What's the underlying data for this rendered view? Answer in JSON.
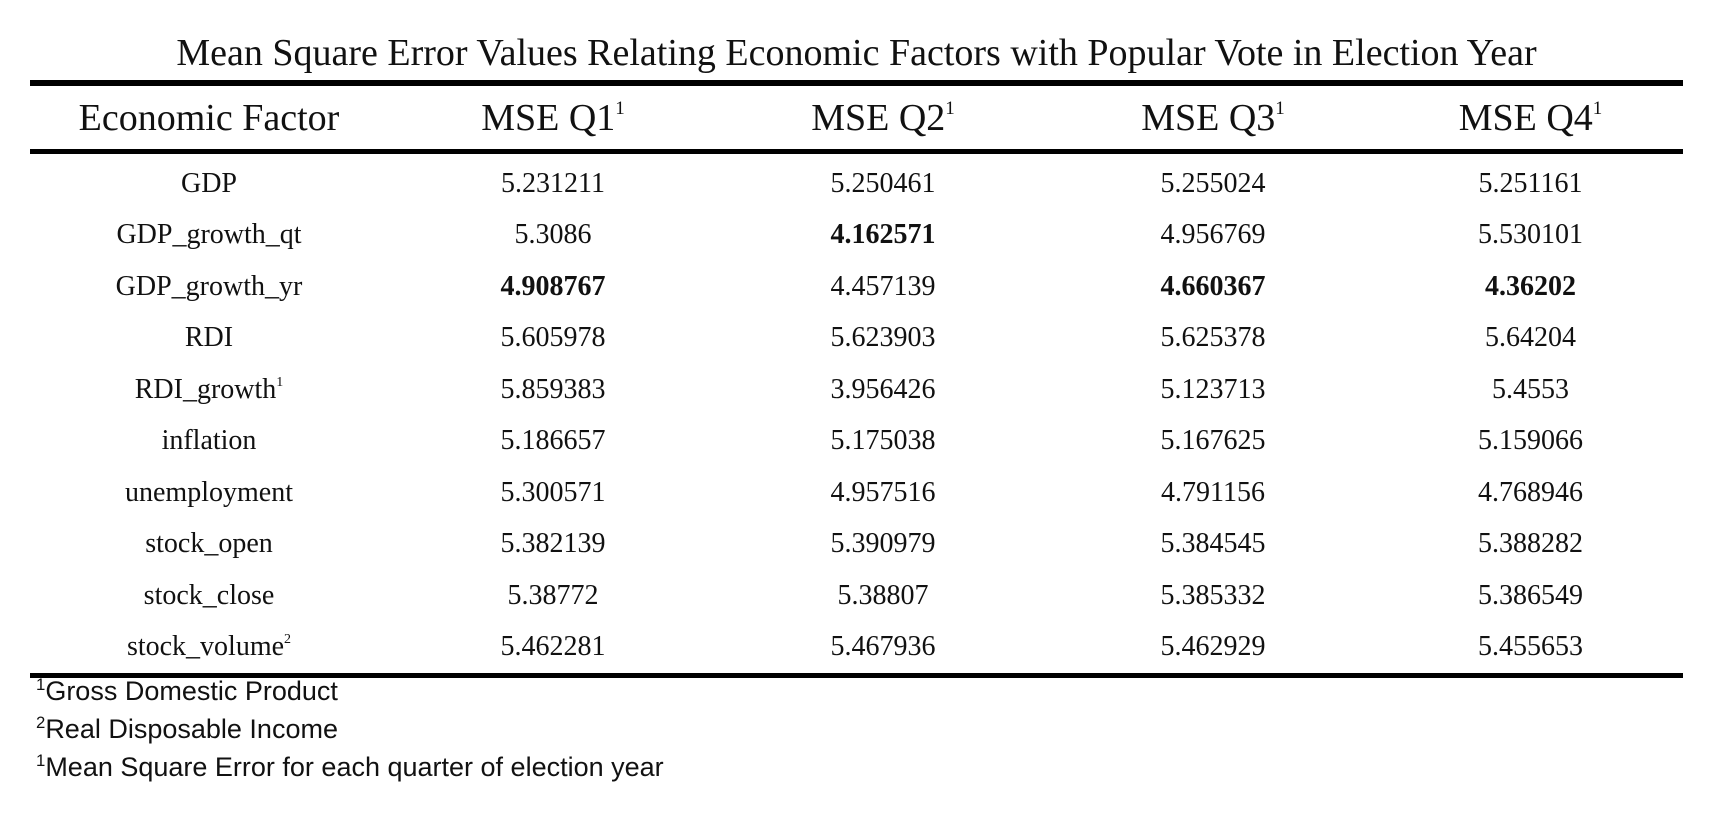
{
  "title": "Mean Square Error Values Relating Economic Factors with Popular Vote in Election Year",
  "columns": [
    {
      "label": "Economic Factor",
      "sup": ""
    },
    {
      "label": "MSE Q1",
      "sup": "1"
    },
    {
      "label": "MSE Q2",
      "sup": "1"
    },
    {
      "label": "MSE Q3",
      "sup": "1"
    },
    {
      "label": "MSE Q4",
      "sup": "1"
    }
  ],
  "rows": [
    {
      "factor": "GDP",
      "sup": "",
      "values": [
        "5.231211",
        "5.250461",
        "5.255024",
        "5.251161"
      ],
      "bold": [
        false,
        false,
        false,
        false
      ]
    },
    {
      "factor": "GDP_growth_qt",
      "sup": "",
      "values": [
        "5.3086",
        "4.162571",
        "4.956769",
        "5.530101"
      ],
      "bold": [
        false,
        true,
        false,
        false
      ]
    },
    {
      "factor": "GDP_growth_yr",
      "sup": "",
      "values": [
        "4.908767",
        "4.457139",
        "4.660367",
        "4.36202"
      ],
      "bold": [
        true,
        false,
        true,
        true
      ]
    },
    {
      "factor": "RDI",
      "sup": "",
      "values": [
        "5.605978",
        "5.623903",
        "5.625378",
        "5.64204"
      ],
      "bold": [
        false,
        false,
        false,
        false
      ]
    },
    {
      "factor": "RDI_growth",
      "sup": "1",
      "values": [
        "5.859383",
        "3.956426",
        "5.123713",
        "5.4553"
      ],
      "bold": [
        false,
        false,
        false,
        false
      ]
    },
    {
      "factor": "inflation",
      "sup": "",
      "values": [
        "5.186657",
        "5.175038",
        "5.167625",
        "5.159066"
      ],
      "bold": [
        false,
        false,
        false,
        false
      ]
    },
    {
      "factor": "unemployment",
      "sup": "",
      "values": [
        "5.300571",
        "4.957516",
        "4.791156",
        "4.768946"
      ],
      "bold": [
        false,
        false,
        false,
        false
      ]
    },
    {
      "factor": "stock_open",
      "sup": "",
      "values": [
        "5.382139",
        "5.390979",
        "5.384545",
        "5.388282"
      ],
      "bold": [
        false,
        false,
        false,
        false
      ]
    },
    {
      "factor": "stock_close",
      "sup": "",
      "values": [
        "5.38772",
        "5.38807",
        "5.385332",
        "5.386549"
      ],
      "bold": [
        false,
        false,
        false,
        false
      ]
    },
    {
      "factor": "stock_volume",
      "sup": "2",
      "values": [
        "5.462281",
        "5.467936",
        "5.462929",
        "5.455653"
      ],
      "bold": [
        false,
        false,
        false,
        false
      ]
    }
  ],
  "notes": [
    {
      "sup": "1",
      "text": "Gross Domestic Product"
    },
    {
      "sup": "2",
      "text": "Real Disposable Income"
    },
    {
      "sup": "1",
      "text": "Mean Square Error for each quarter of election year"
    }
  ]
}
